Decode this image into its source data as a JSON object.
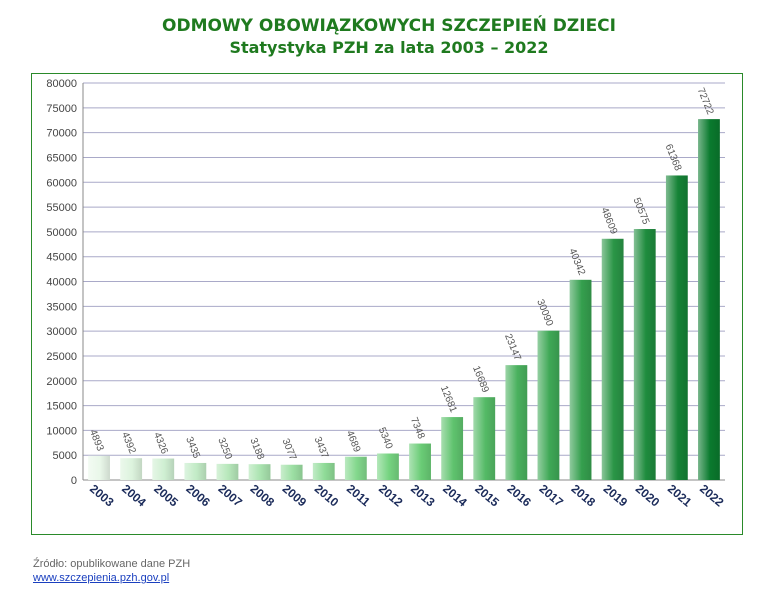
{
  "title_line1": "ODMOWY OBOWIĄZKOWYCH SZCZEPIEŃ DZIECI",
  "title_line2": "Statystyka PZH za lata 2003 – 2022",
  "source_text": "Źródło: opublikowane dane PZH",
  "link_text": "www.szczepienia.pzh.gov.pl",
  "chart_data": {
    "type": "bar",
    "title": "ODMOWY OBOWIĄZKOWYCH SZCZEPIEŃ DZIECI",
    "subtitle": "Statystyka PZH za lata 2003 – 2022",
    "categories": [
      "2003",
      "2004",
      "2005",
      "2006",
      "2007",
      "2008",
      "2009",
      "2010",
      "2011",
      "2012",
      "2013",
      "2014",
      "2015",
      "2016",
      "2017",
      "2018",
      "2019",
      "2020",
      "2021",
      "2022"
    ],
    "values": [
      4893,
      4392,
      4326,
      3435,
      3250,
      3188,
      3077,
      3437,
      4689,
      5340,
      7348,
      12681,
      16689,
      23147,
      30090,
      40342,
      48609,
      50575,
      61368,
      72722
    ],
    "ylim": [
      0,
      80000
    ],
    "yticks": [
      0,
      5000,
      10000,
      15000,
      20000,
      25000,
      30000,
      35000,
      40000,
      45000,
      50000,
      55000,
      60000,
      65000,
      70000,
      75000,
      80000
    ],
    "xlabel": "",
    "ylabel": "",
    "grid": true,
    "legend": "none",
    "colors": {
      "light": "#e9f7e9",
      "mid": "#6fd17a",
      "dark": "#0a7a2e",
      "grid": "#a9a9c8",
      "frame": "#2a8a2a"
    }
  }
}
